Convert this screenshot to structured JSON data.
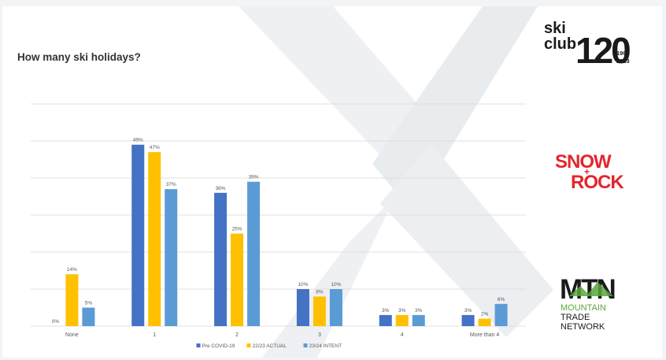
{
  "slide": {
    "title": "How many ski holidays?"
  },
  "logos": {
    "skiclub": {
      "line1": "ski",
      "line2": "club",
      "number": "120",
      "years_top": "1903",
      "years_bottom": "2023"
    },
    "snowrock": {
      "line1": "SNOW",
      "plus": "+",
      "line2": "ROCK"
    },
    "mtn": {
      "mark": "MTN",
      "line1": "MOUNTAIN",
      "line2": "TRADE",
      "line3": "NETWORK"
    }
  },
  "colors": {
    "pre_covid": "#4472c4",
    "actual_2223": "#ffc000",
    "intent_2324": "#5b9bd5",
    "gridline": "#d9d9d9",
    "label": "#595959",
    "watermark": "#e9ecef",
    "snowrock_red": "#e3262d",
    "mtn_green": "#5aa63c"
  },
  "chart_data": {
    "type": "bar",
    "categories": [
      "None",
      "1",
      "2",
      "3",
      "4",
      "More than 4"
    ],
    "series": [
      {
        "name": "Pre COVID-19",
        "values": [
          0,
          49,
          36,
          10,
          3,
          3
        ],
        "labels": [
          "0%",
          "49%",
          "36%",
          "10%",
          "3%",
          "3%"
        ]
      },
      {
        "name": "22/23 ACTUAL",
        "values": [
          14,
          47,
          25,
          8,
          3,
          2
        ],
        "labels": [
          "14%",
          "47%",
          "25%",
          "8%",
          "3%",
          "2%"
        ]
      },
      {
        "name": "23/24 INTENT",
        "values": [
          5,
          37,
          39,
          10,
          3,
          6
        ],
        "labels": [
          "5%",
          "37%",
          "39%",
          "10%",
          "3%",
          "6%"
        ]
      }
    ],
    "ylim": [
      0,
      60
    ],
    "grid": true,
    "legend": "bottom"
  }
}
